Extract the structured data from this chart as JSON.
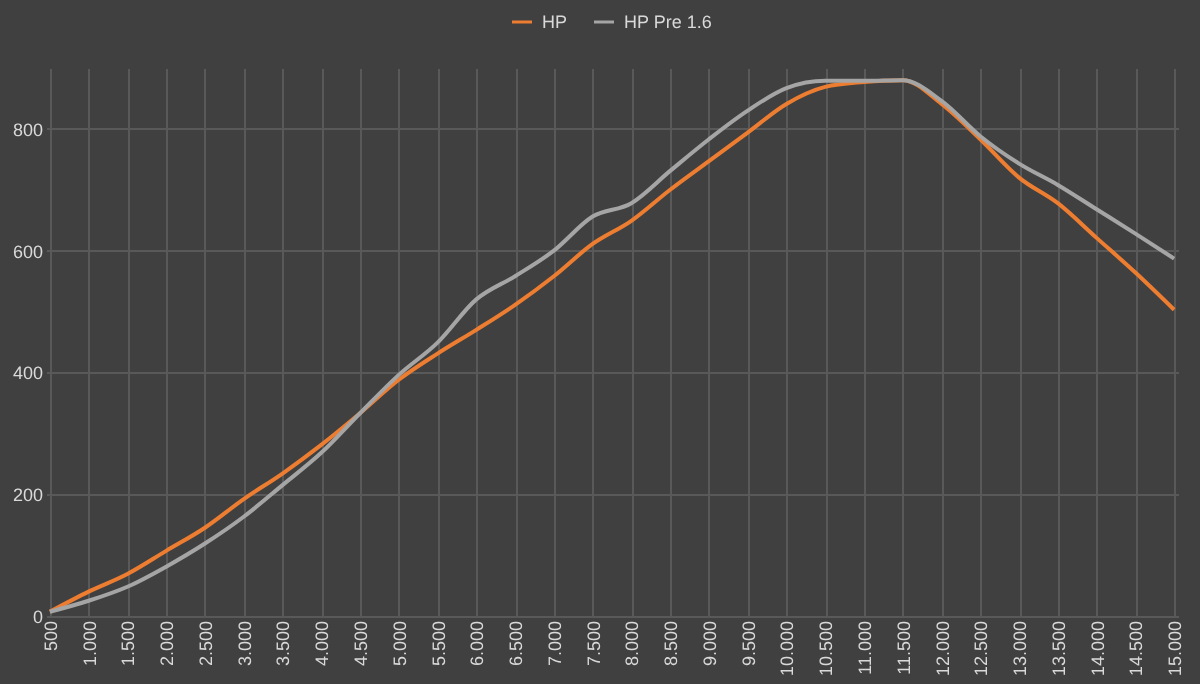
{
  "chart_data": {
    "type": "line",
    "categories": [
      "500",
      "1.000",
      "1.500",
      "2.000",
      "2.500",
      "3.000",
      "3.500",
      "4.000",
      "4.500",
      "5.000",
      "5.500",
      "6.000",
      "6.500",
      "7.000",
      "7.500",
      "8.000",
      "8.500",
      "9.000",
      "9.500",
      "10.000",
      "10.500",
      "11.000",
      "11.500",
      "12.000",
      "12.500",
      "13.000",
      "13.500",
      "14.000",
      "14.500",
      "15.000"
    ],
    "series": [
      {
        "name": "HP",
        "color": "#ed7d31",
        "values": [
          7,
          40,
          69,
          107,
          145,
          192,
          234,
          281,
          333,
          388,
          431,
          470,
          511,
          558,
          611,
          649,
          700,
          747,
          794,
          841,
          869,
          877,
          880,
          841,
          783,
          720,
          678,
          621,
          564,
          503
        ]
      },
      {
        "name": "HP Pre 1.6",
        "color": "#a5a5a5",
        "values": [
          7,
          25,
          48,
          81,
          119,
          163,
          215,
          268,
          333,
          396,
          449,
          520,
          558,
          600,
          656,
          678,
          731,
          783,
          830,
          867,
          879,
          879,
          880,
          846,
          788,
          743,
          708,
          668,
          628,
          587
        ]
      }
    ],
    "ylim": [
      0,
      900
    ],
    "yticks": [
      0,
      200,
      400,
      600,
      800
    ],
    "grid": true,
    "legend": "top",
    "marker": "none",
    "line_style": "solid"
  }
}
